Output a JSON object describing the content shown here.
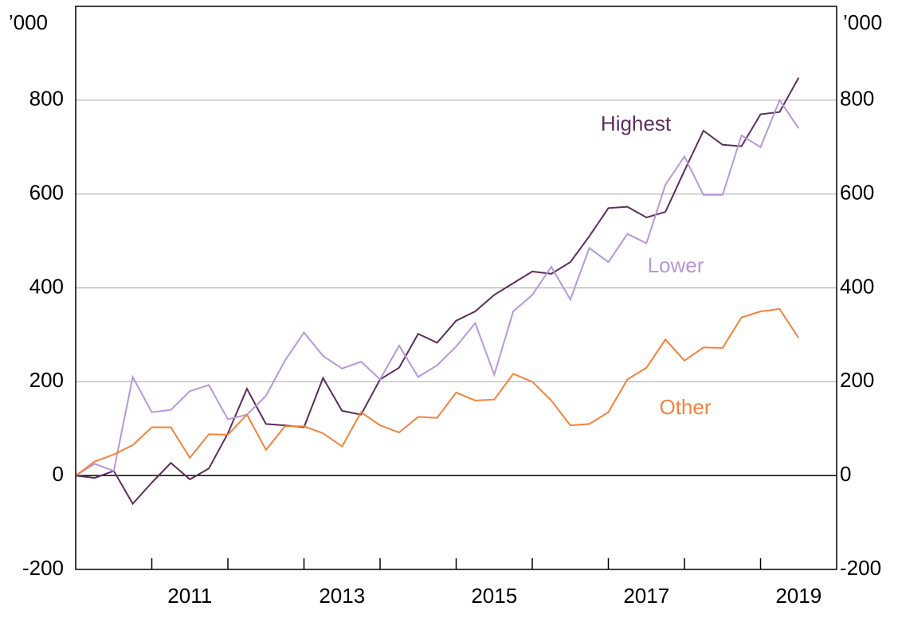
{
  "chart_data": {
    "type": "line",
    "y_unit": "’000",
    "x": [
      2010,
      2010.25,
      2010.5,
      2010.75,
      2011,
      2011.25,
      2011.5,
      2011.75,
      2012,
      2012.25,
      2012.5,
      2012.75,
      2013,
      2013.25,
      2013.5,
      2013.75,
      2014,
      2014.25,
      2014.5,
      2014.75,
      2015,
      2015.25,
      2015.5,
      2015.75,
      2016,
      2016.25,
      2016.5,
      2016.75,
      2017,
      2017.25,
      2017.5,
      2017.75,
      2018,
      2018.25,
      2018.5,
      2018.75,
      2019,
      2019.25,
      2019.5
    ],
    "series": [
      {
        "name": "Highest",
        "color": "#5e2c5e",
        "values": [
          0,
          -5,
          10,
          -60,
          -15,
          27,
          -8,
          15,
          90,
          185,
          110,
          107,
          103,
          208,
          138,
          130,
          205,
          230,
          302,
          283,
          330,
          350,
          385,
          410,
          435,
          430,
          455,
          510,
          570,
          573,
          550,
          562,
          650,
          735,
          705,
          702,
          770,
          775,
          848
        ]
      },
      {
        "name": "Lower",
        "color": "#b797da",
        "values": [
          0,
          25,
          10,
          210,
          135,
          140,
          180,
          193,
          120,
          130,
          170,
          245,
          305,
          255,
          228,
          243,
          205,
          277,
          210,
          235,
          275,
          325,
          215,
          350,
          385,
          445,
          375,
          485,
          455,
          515,
          495,
          620,
          680,
          598,
          598,
          725,
          700,
          800,
          740
        ]
      },
      {
        "name": "Other",
        "color": "#f5823c",
        "values": [
          0,
          30,
          45,
          65,
          103,
          103,
          38,
          88,
          87,
          130,
          55,
          105,
          105,
          90,
          62,
          135,
          107,
          92,
          125,
          123,
          177,
          160,
          162,
          217,
          200,
          160,
          107,
          110,
          135,
          205,
          230,
          290,
          245,
          273,
          272,
          337,
          350,
          355,
          293
        ]
      }
    ],
    "xlim": [
      2010,
      2020
    ],
    "xticks": [
      {
        "value": 2011.5,
        "label": "2011"
      },
      {
        "value": 2013.5,
        "label": "2013"
      },
      {
        "value": 2015.5,
        "label": "2015"
      },
      {
        "value": 2017.5,
        "label": "2017"
      },
      {
        "value": 2019.5,
        "label": "2019"
      }
    ],
    "xtick_marks": [
      2011,
      2012,
      2013,
      2014,
      2015,
      2016,
      2017,
      2018,
      2019
    ],
    "ylim": [
      -200,
      1000
    ],
    "yticks": [
      -200,
      0,
      200,
      400,
      600,
      800
    ],
    "grid": true
  }
}
